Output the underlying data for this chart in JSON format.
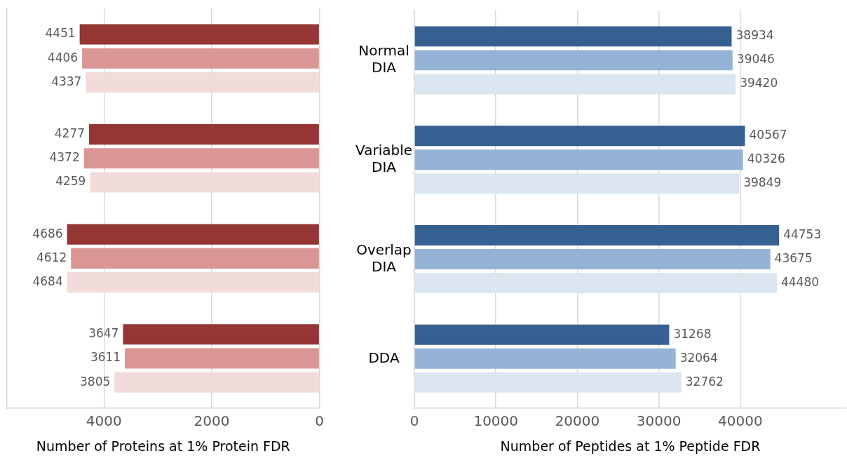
{
  "chart_data": [
    {
      "type": "bar",
      "orientation": "horizontal",
      "xlabel": "Number of Proteins at 1% Protein FDR",
      "categories": [
        null,
        null,
        null,
        null
      ],
      "tick_labels": "x",
      "series": [
        {
          "color": "#943634",
          "values": [
            4451,
            4277,
            4686,
            3647
          ]
        },
        {
          "color": "#da9694",
          "values": [
            4406,
            4372,
            4612,
            3611
          ]
        },
        {
          "color": "#f2dcdb",
          "values": [
            4337,
            4259,
            4684,
            3805
          ]
        }
      ],
      "xlim": [
        5800,
        0
      ],
      "xticks": [
        4000,
        2000,
        0
      ],
      "grid": "x",
      "data_labels": true,
      "legend": false
    },
    {
      "type": "bar",
      "orientation": "horizontal",
      "xlabel": "Number of Peptides at 1% Peptide FDR",
      "categories": [
        "Normal DIA",
        "Variable DIA",
        "Overlap DIA",
        "DDA"
      ],
      "series": [
        {
          "color": "#366092",
          "values": [
            38934,
            40567,
            44753,
            31268
          ]
        },
        {
          "color": "#95b3d7",
          "values": [
            39046,
            40326,
            43675,
            32064
          ]
        },
        {
          "color": "#dce6f1",
          "values": [
            39420,
            39849,
            44480,
            32762
          ]
        }
      ],
      "xlim": [
        0,
        53000
      ],
      "xticks": [
        0,
        10000,
        20000,
        30000,
        40000
      ],
      "grid": "x",
      "data_labels": true,
      "legend": false
    }
  ]
}
